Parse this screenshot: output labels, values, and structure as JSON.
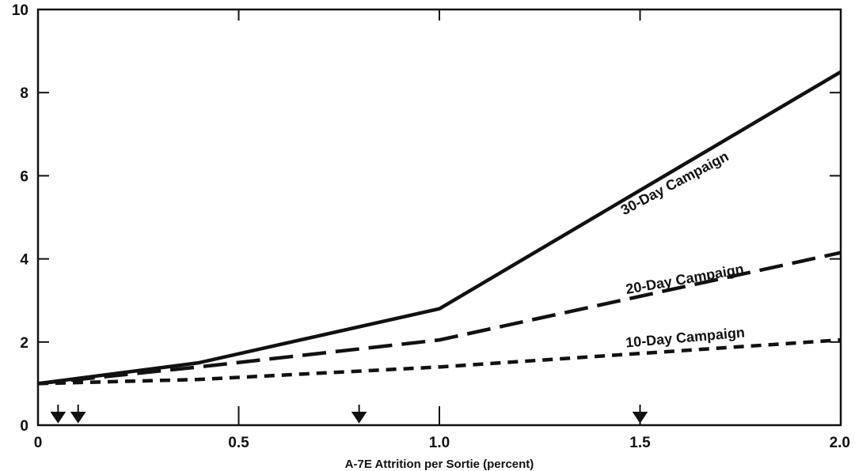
{
  "chart_data": {
    "type": "line",
    "title": "",
    "xlabel": "A-7E Attrition per Sortie (percent)",
    "ylabel": "",
    "xlim": [
      0,
      2.0
    ],
    "ylim": [
      0,
      10
    ],
    "xticks": [
      0,
      0.5,
      1.0,
      1.5,
      2.0
    ],
    "xtick_labels": [
      "0",
      "0.5",
      "1.0",
      "1.5",
      "2.0"
    ],
    "yticks": [
      0,
      2,
      4,
      6,
      8,
      10
    ],
    "ytick_labels": [
      "0",
      "2",
      "4",
      "6",
      "8",
      "10"
    ],
    "grid": false,
    "series": [
      {
        "name": "30-Day Campaign",
        "style": "solid",
        "x": [
          0,
          0.4,
          1.0,
          2.0
        ],
        "y": [
          1.0,
          1.5,
          2.8,
          8.5
        ]
      },
      {
        "name": "20-Day Campaign",
        "style": "long-dash",
        "x": [
          0,
          0.4,
          1.0,
          2.0
        ],
        "y": [
          1.0,
          1.4,
          2.05,
          4.15
        ]
      },
      {
        "name": "10-Day Campaign",
        "style": "short-dash",
        "x": [
          0,
          0.4,
          1.0,
          2.0
        ],
        "y": [
          1.0,
          1.1,
          1.4,
          2.05
        ]
      }
    ],
    "markers": {
      "style": "down-arrow",
      "x": [
        0.05,
        0.1,
        0.8,
        1.5
      ]
    }
  }
}
